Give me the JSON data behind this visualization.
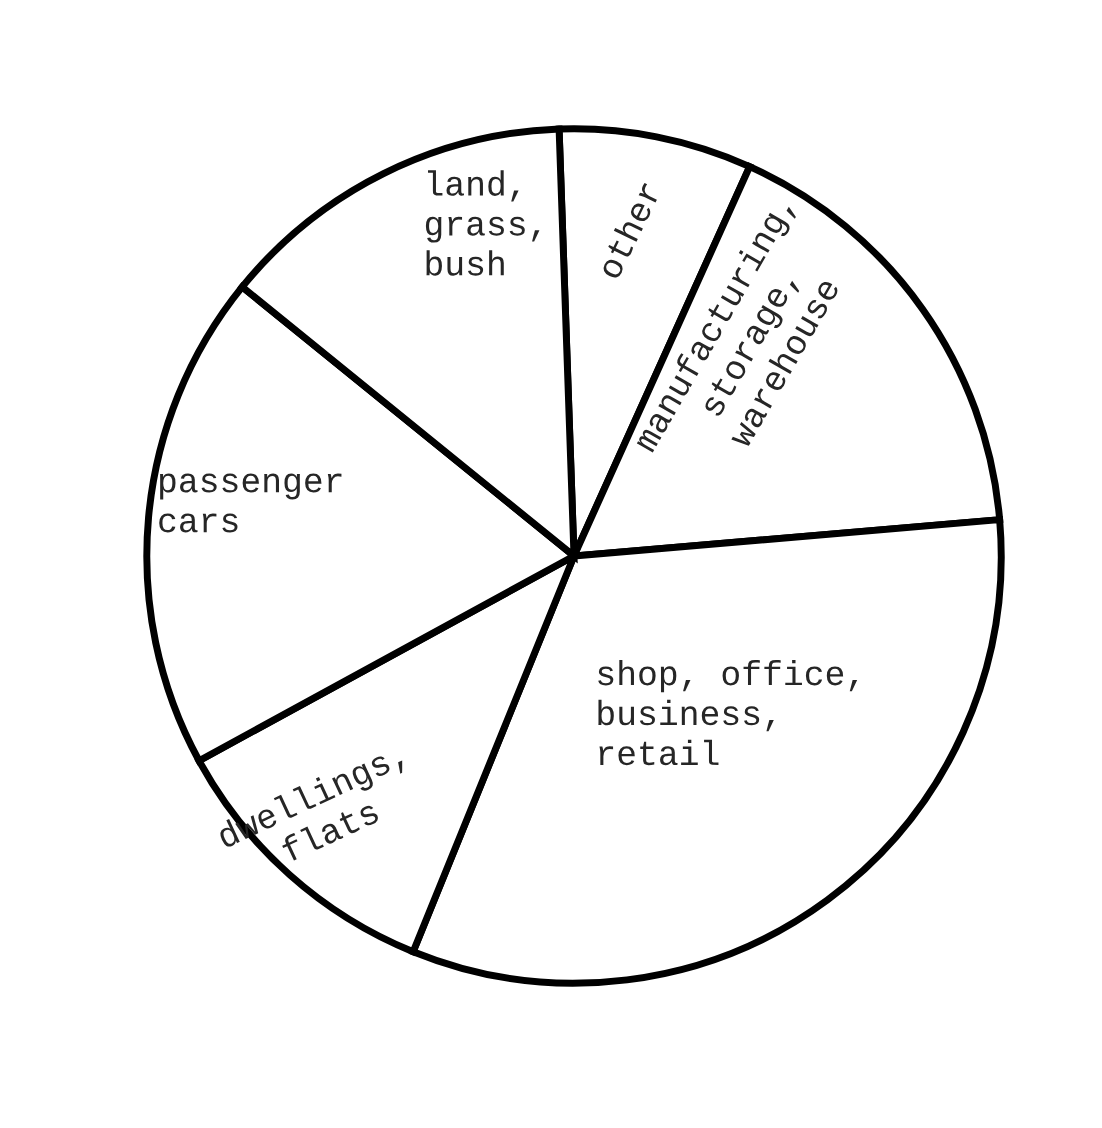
{
  "chart_data": {
    "type": "pie",
    "categories": [
      "other",
      "manufacturing,\nstorage,\nwarehouse",
      "shop, office,\nbusiness,\nretail",
      "dwellings,\nflats",
      "passenger\ncars",
      "land,\ngrass,\nbush"
    ],
    "values": [
      7.3,
      16.9,
      32.5,
      10.9,
      18.8,
      13.6
    ],
    "colors": [
      "#ffffff",
      "#ffffff",
      "#ffffff",
      "#ffffff",
      "#ffffff",
      "#ffffff"
    ]
  }
}
